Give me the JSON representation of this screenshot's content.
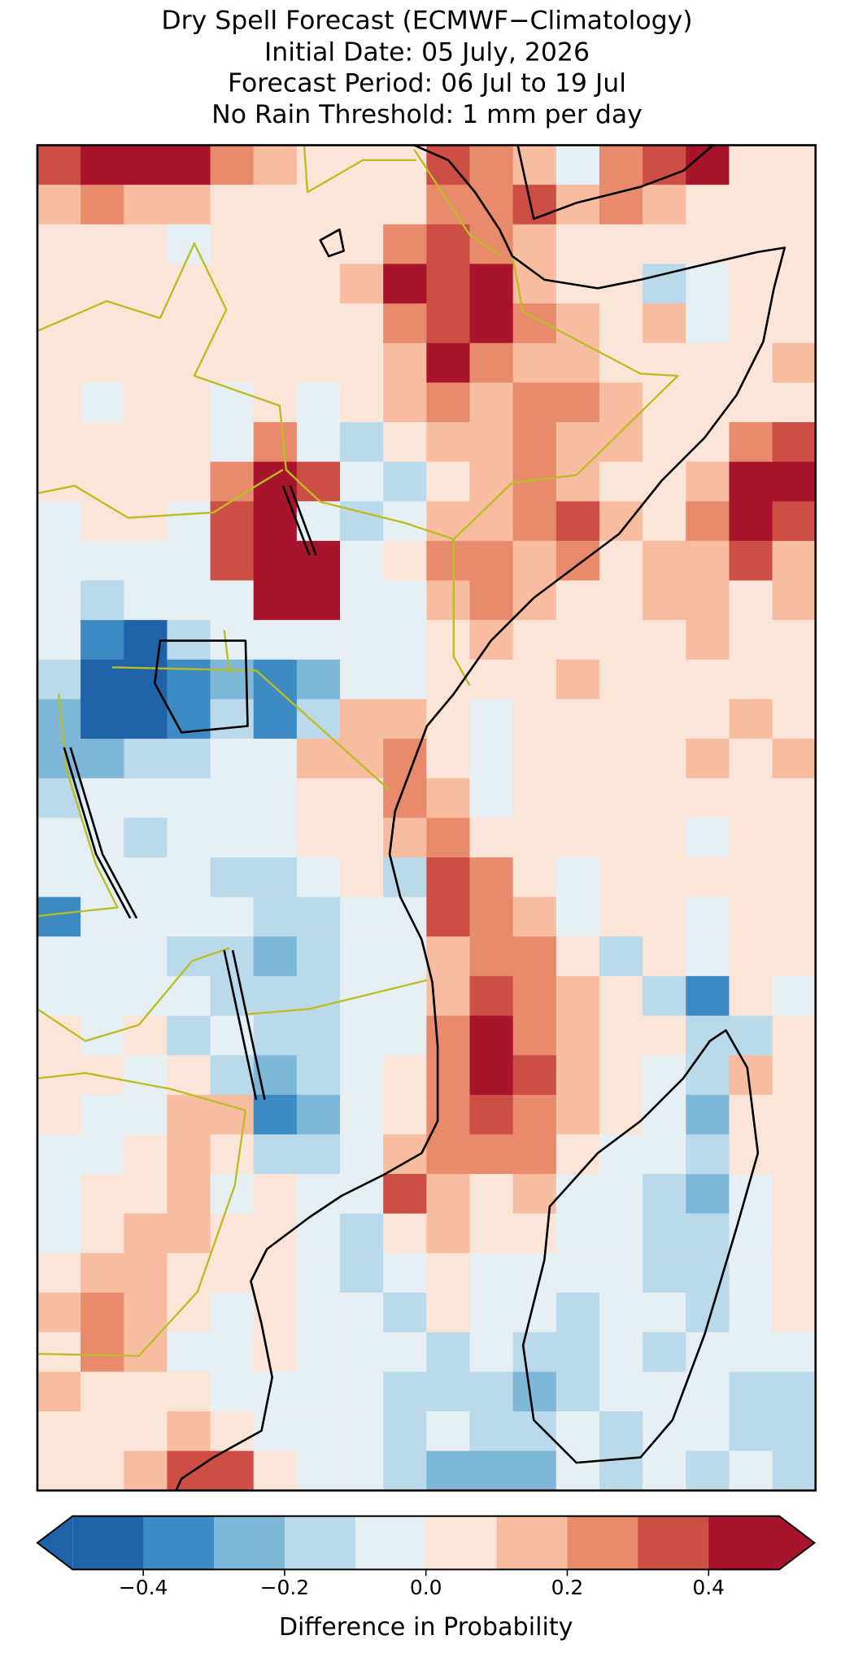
{
  "chart_data": {
    "type": "heatmap",
    "title": [
      "Dry Spell Forecast (ECMWF−Climatology)",
      "Initial Date: 05 July, 2026",
      "Forecast Period: 06 Jul to 19 Jul",
      "No Rain Threshold: 1 mm per day"
    ],
    "colorbar": {
      "label": "Difference in Probability",
      "levels": [
        -0.5,
        -0.4,
        -0.3,
        -0.2,
        -0.1,
        0,
        0.1,
        0.2,
        0.3,
        0.4,
        0.5
      ],
      "colors": [
        "#1f62a8",
        "#3d8bc2",
        "#7fb7d9",
        "#bad9ea",
        "#e6eff4",
        "#fbe5d8",
        "#f8bca0",
        "#e88a6c",
        "#cd4e45",
        "#a8142c"
      ],
      "extend": "both",
      "ticks": [
        {
          "value": -0.4,
          "label": "−0.4"
        },
        {
          "value": -0.2,
          "label": "−0.2"
        },
        {
          "value": 0,
          "label": "0.0"
        },
        0.2,
        0.4
      ]
    },
    "cells": [
      [
        0.35,
        0.45,
        0.45,
        0.45,
        0.25,
        0.15,
        0.05,
        0.05,
        0.05,
        0.35,
        0.25,
        0.15,
        -0.05,
        0.25,
        0.35,
        0.45,
        0.05,
        0.05
      ],
      [
        0.15,
        0.25,
        0.15,
        0.15,
        0.05,
        0.05,
        0.05,
        0.05,
        0.05,
        0.25,
        0.25,
        0.35,
        0.15,
        0.25,
        0.15,
        0.05,
        0.05,
        0.05
      ],
      [
        0.05,
        0.05,
        0.05,
        -0.05,
        0.05,
        0.05,
        0.05,
        0.05,
        0.25,
        0.35,
        0.25,
        0.15,
        0.05,
        0.05,
        0.05,
        0.05,
        0.05,
        0.05
      ],
      [
        0.05,
        0.05,
        0.05,
        0.05,
        0.05,
        0.05,
        0.05,
        0.15,
        0.45,
        0.35,
        0.45,
        0.15,
        0.05,
        0.05,
        -0.15,
        -0.05,
        0.05,
        0.05
      ],
      [
        0.05,
        0.05,
        0.05,
        0.05,
        0.05,
        0.05,
        0.05,
        0.05,
        0.25,
        0.35,
        0.45,
        0.25,
        0.15,
        0.05,
        0.15,
        -0.05,
        0.05,
        0.05
      ],
      [
        0.05,
        0.05,
        0.05,
        0.05,
        0.05,
        0.05,
        0.05,
        0.05,
        0.15,
        0.45,
        0.25,
        0.15,
        0.15,
        0.05,
        0.05,
        0.05,
        0.05,
        0.15
      ],
      [
        0.05,
        -0.05,
        0.05,
        0.05,
        -0.05,
        0.05,
        -0.05,
        0.05,
        0.15,
        0.25,
        0.15,
        0.25,
        0.25,
        0.15,
        0.05,
        0.05,
        0.05,
        0.05
      ],
      [
        0.05,
        0.05,
        0.05,
        0.05,
        -0.05,
        0.25,
        -0.05,
        -0.15,
        0.05,
        0.15,
        0.15,
        0.25,
        0.15,
        0.15,
        0.05,
        0.05,
        0.25,
        0.35
      ],
      [
        0.05,
        0.05,
        0.05,
        0.05,
        0.25,
        0.45,
        0.35,
        -0.05,
        -0.15,
        0.05,
        0.15,
        0.25,
        0.15,
        0.05,
        0.05,
        0.15,
        0.45,
        0.45
      ],
      [
        -0.05,
        0.05,
        0.05,
        -0.05,
        0.35,
        0.45,
        -0.05,
        -0.15,
        -0.05,
        0.15,
        0.15,
        0.25,
        0.35,
        0.15,
        0.05,
        0.25,
        0.45,
        0.35
      ],
      [
        -0.05,
        -0.05,
        -0.05,
        -0.05,
        0.35,
        0.45,
        0.45,
        -0.05,
        0.05,
        0.25,
        0.25,
        0.15,
        0.25,
        0.05,
        0.15,
        0.15,
        0.35,
        0.15
      ],
      [
        -0.05,
        -0.15,
        -0.05,
        -0.05,
        -0.05,
        0.45,
        0.45,
        -0.05,
        -0.05,
        0.15,
        0.25,
        0.15,
        0.05,
        0.05,
        0.15,
        0.15,
        0.05,
        0.15
      ],
      [
        -0.05,
        -0.35,
        -0.45,
        -0.15,
        -0.05,
        -0.05,
        -0.05,
        -0.05,
        -0.05,
        0.05,
        0.15,
        0.05,
        0.05,
        0.05,
        0.05,
        0.15,
        0.05,
        0.05
      ],
      [
        -0.15,
        -0.45,
        -0.45,
        -0.35,
        -0.25,
        -0.35,
        -0.25,
        -0.05,
        -0.05,
        0.05,
        0.05,
        0.05,
        0.15,
        0.05,
        0.05,
        0.05,
        0.05,
        0.05
      ],
      [
        -0.25,
        -0.45,
        -0.45,
        -0.35,
        -0.15,
        -0.35,
        -0.15,
        0.15,
        0.15,
        0.05,
        -0.05,
        0.05,
        0.05,
        0.05,
        0.05,
        0.05,
        0.15,
        0.05
      ],
      [
        -0.25,
        -0.25,
        -0.15,
        -0.15,
        -0.05,
        -0.05,
        0.15,
        0.15,
        0.25,
        0.05,
        -0.05,
        0.05,
        0.05,
        0.05,
        0.05,
        0.15,
        0.05,
        0.15
      ],
      [
        -0.15,
        -0.05,
        -0.05,
        -0.05,
        -0.05,
        -0.05,
        0.05,
        0.05,
        0.25,
        0.15,
        -0.05,
        0.05,
        0.05,
        0.05,
        0.05,
        0.05,
        0.05,
        0.05
      ],
      [
        -0.05,
        -0.05,
        -0.15,
        -0.05,
        -0.05,
        -0.05,
        0.05,
        0.05,
        0.15,
        0.25,
        0.05,
        0.05,
        0.05,
        0.05,
        0.05,
        -0.05,
        0.05,
        0.05
      ],
      [
        -0.05,
        -0.05,
        -0.05,
        -0.05,
        -0.15,
        -0.15,
        -0.05,
        0.05,
        -0.15,
        0.35,
        0.25,
        0.05,
        -0.05,
        0.05,
        0.05,
        0.05,
        0.05,
        0.05
      ],
      [
        -0.35,
        -0.05,
        -0.05,
        -0.05,
        -0.05,
        -0.15,
        -0.15,
        -0.05,
        -0.05,
        0.35,
        0.25,
        0.15,
        -0.05,
        0.05,
        0.05,
        -0.05,
        0.05,
        0.05
      ],
      [
        -0.05,
        -0.05,
        -0.05,
        -0.15,
        -0.15,
        -0.25,
        -0.15,
        -0.05,
        -0.05,
        0.15,
        0.25,
        0.25,
        0.05,
        -0.15,
        0.05,
        -0.05,
        0.05,
        0.05
      ],
      [
        -0.05,
        -0.05,
        -0.05,
        -0.05,
        -0.15,
        -0.15,
        -0.15,
        -0.05,
        -0.05,
        0.15,
        0.35,
        0.25,
        0.15,
        0.05,
        -0.15,
        -0.35,
        0.05,
        -0.05
      ],
      [
        0.05,
        -0.05,
        0.05,
        -0.15,
        -0.05,
        -0.15,
        -0.15,
        -0.05,
        -0.05,
        0.25,
        0.45,
        0.25,
        0.15,
        0.05,
        0.05,
        -0.15,
        -0.15,
        0.05
      ],
      [
        0.05,
        0.05,
        -0.05,
        0.05,
        -0.15,
        -0.25,
        -0.15,
        -0.05,
        0.05,
        0.25,
        0.45,
        0.35,
        0.15,
        0.05,
        -0.05,
        -0.15,
        0.15,
        0.05
      ],
      [
        0.05,
        -0.05,
        -0.05,
        0.15,
        0.15,
        -0.35,
        -0.25,
        -0.05,
        0.05,
        0.25,
        0.35,
        0.25,
        0.15,
        0.05,
        -0.05,
        -0.25,
        0.05,
        0.05
      ],
      [
        -0.05,
        -0.05,
        0.05,
        0.15,
        0.05,
        -0.15,
        -0.15,
        -0.05,
        0.15,
        0.25,
        0.25,
        0.25,
        0.05,
        -0.05,
        -0.05,
        -0.15,
        0.05,
        0.05
      ],
      [
        -0.05,
        0.05,
        0.05,
        0.15,
        -0.05,
        0.05,
        -0.05,
        -0.05,
        0.35,
        0.15,
        0.05,
        0.15,
        -0.05,
        -0.05,
        -0.15,
        -0.25,
        -0.05,
        0.05
      ],
      [
        -0.05,
        0.05,
        0.15,
        0.15,
        0.05,
        0.05,
        -0.05,
        -0.15,
        0.05,
        0.15,
        0.05,
        0.05,
        -0.05,
        -0.05,
        -0.15,
        -0.15,
        -0.05,
        0.05
      ],
      [
        0.05,
        0.15,
        0.15,
        0.05,
        0.05,
        0.05,
        -0.05,
        -0.15,
        -0.05,
        0.05,
        -0.05,
        -0.05,
        -0.05,
        -0.05,
        -0.15,
        -0.15,
        -0.05,
        0.05
      ],
      [
        0.15,
        0.25,
        0.15,
        0.05,
        -0.05,
        0.05,
        -0.05,
        -0.05,
        -0.15,
        0.05,
        -0.05,
        -0.05,
        -0.15,
        -0.05,
        -0.05,
        -0.15,
        -0.05,
        0.05
      ],
      [
        0.05,
        0.25,
        0.15,
        -0.05,
        -0.05,
        0.05,
        -0.05,
        -0.05,
        -0.05,
        -0.15,
        -0.05,
        -0.15,
        -0.15,
        -0.05,
        -0.15,
        -0.05,
        -0.05,
        -0.05
      ],
      [
        0.15,
        0.05,
        0.05,
        0.05,
        -0.05,
        -0.05,
        -0.05,
        -0.05,
        -0.15,
        -0.15,
        -0.15,
        -0.25,
        -0.15,
        -0.05,
        -0.05,
        -0.05,
        -0.15,
        -0.15
      ],
      [
        0.05,
        0.05,
        0.05,
        0.15,
        0.05,
        -0.05,
        -0.05,
        -0.05,
        -0.15,
        -0.05,
        -0.15,
        -0.15,
        -0.05,
        -0.15,
        -0.05,
        -0.05,
        -0.15,
        -0.15
      ],
      [
        0.05,
        0.05,
        0.15,
        0.35,
        0.35,
        0.05,
        -0.05,
        -0.05,
        -0.15,
        -0.25,
        -0.25,
        -0.25,
        -0.05,
        -0.15,
        -0.05,
        -0.15,
        -0.05,
        -0.15
      ]
    ]
  }
}
